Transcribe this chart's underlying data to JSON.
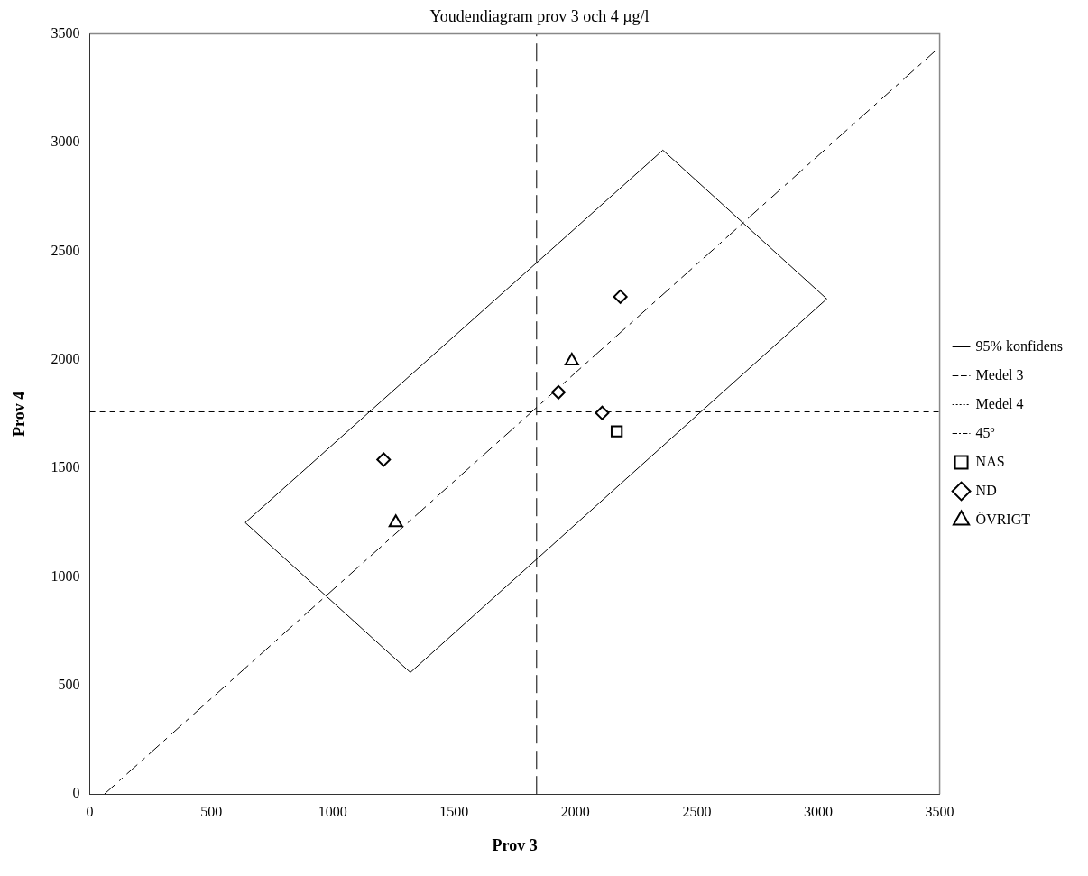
{
  "chart_data": {
    "type": "scatter",
    "title": "Youdendiagram prov 3 och 4 µg/l",
    "xlabel": "Prov 3",
    "ylabel": "Prov 4",
    "xlim": [
      0,
      3500
    ],
    "xticks": [
      0,
      500,
      1000,
      1500,
      2000,
      2500,
      3000,
      3500
    ],
    "ylim": [
      0,
      3500
    ],
    "yticks": [
      0,
      500,
      1000,
      1500,
      2000,
      2500,
      3000,
      3500
    ],
    "grid": false,
    "legend": "right",
    "series": [
      {
        "name": "95% konfidens",
        "type": "line",
        "line_style": "solid",
        "color": "#000000",
        "x": [
          640,
          2360,
          3035
        ],
        "values": [
          1250,
          2965,
          2280
        ]
      },
      {
        "type": "line",
        "line_style": "solid",
        "color": "#000000",
        "x": [
          640,
          1320,
          3035
        ],
        "values": [
          1250,
          560,
          2280
        ]
      },
      {
        "name": "Medel 3",
        "type": "line",
        "line_style": "dashed",
        "color": "#000000",
        "x": [
          1840,
          1840
        ],
        "values": [
          0,
          3500
        ]
      },
      {
        "name": "Medel 4",
        "type": "line",
        "line_style": "dashed",
        "color": "#000000",
        "x": [
          0,
          3500
        ],
        "values": [
          1760,
          1760
        ]
      },
      {
        "name": "45º",
        "type": "line",
        "line_style": "dashed",
        "color": "#000000",
        "x": [
          60,
          3500
        ],
        "values": [
          0,
          3440
        ]
      },
      {
        "name": "NAS",
        "type": "scatter",
        "marker": "square",
        "color": "#000000",
        "x": [
          2170
        ],
        "values": [
          1670
        ]
      },
      {
        "name": "ND",
        "type": "scatter",
        "marker": "diamond",
        "color": "#000000",
        "x": [
          2185,
          1930,
          2110,
          1210
        ],
        "values": [
          2290,
          1850,
          1755,
          1540
        ]
      },
      {
        "name": "ÖVRIGT",
        "type": "scatter",
        "marker": "triangle",
        "color": "#000000",
        "x": [
          1985,
          1260
        ],
        "values": [
          1995,
          1250
        ]
      }
    ]
  }
}
